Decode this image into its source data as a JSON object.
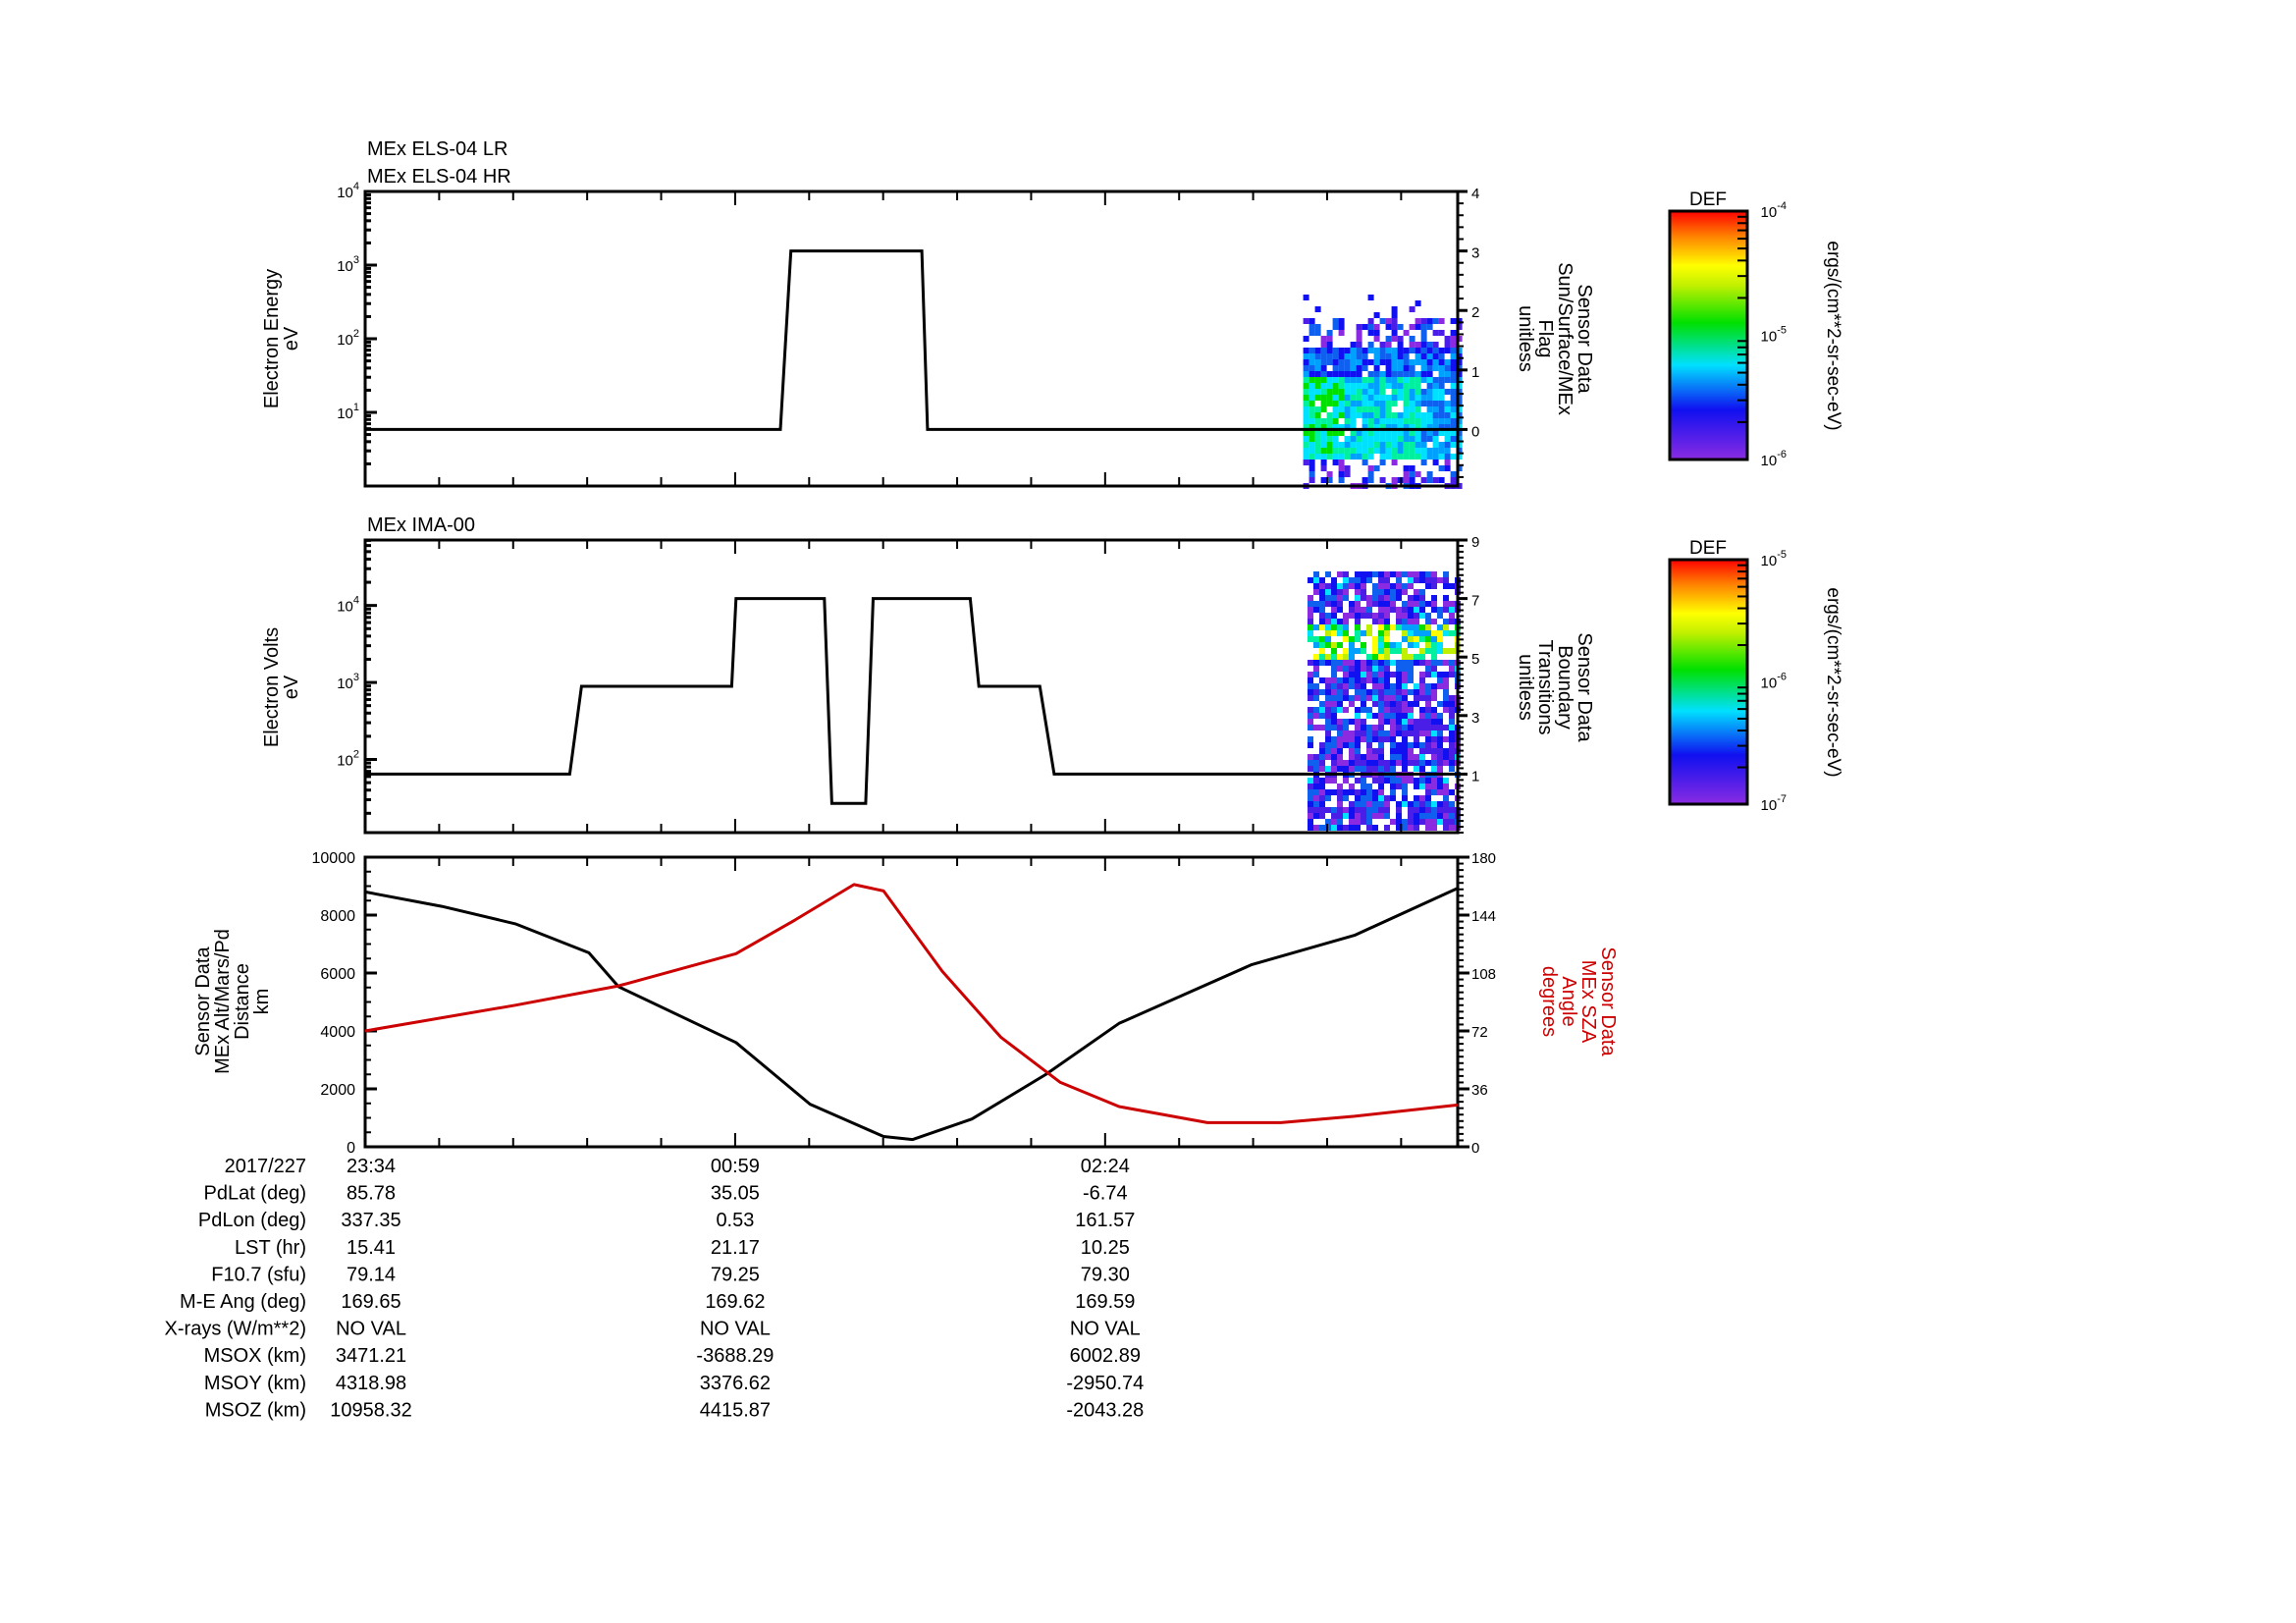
{
  "chart_data": [
    {
      "type": "line",
      "title_lines": [
        "MEx ELS-04 LR",
        "MEx ELS-04 HR"
      ],
      "ylabel": [
        "Electron Energy",
        "eV"
      ],
      "yscale": "log",
      "ylim_log_exponents": [
        0,
        4
      ],
      "yticks": [
        {
          "base": "10",
          "exp": "4",
          "v": 4
        },
        {
          "base": "10",
          "exp": "3",
          "v": 3
        },
        {
          "base": "10",
          "exp": "2",
          "v": 2
        },
        {
          "base": "10",
          "exp": "1",
          "v": 1
        }
      ],
      "y2label": [
        "Sensor Data",
        "Sun/Surface/MEx",
        "Flag",
        "unitless"
      ],
      "y2lim": [
        -0.95,
        4
      ],
      "y2ticks": [
        "0",
        "1",
        "2",
        "3",
        "4"
      ],
      "x_unit": "minutes since 23:34",
      "xlim": [
        0,
        251
      ],
      "series": [
        {
          "name": "Sun/Surface/MEx Flag",
          "x": [
            0,
            95.4,
            97.8,
            127.9,
            129.2,
            251
          ],
          "y": [
            0,
            0,
            3,
            3,
            0,
            0
          ]
        }
      ],
      "spectrogram": {
        "t_range": [
          215.5,
          251
        ],
        "colorbar": {
          "label": "DEF",
          "units": "ergs/(cm**2-sr-sec-eV)",
          "ticks": [
            {
              "base": "10",
              "exp": "-4"
            },
            {
              "base": "10",
              "exp": "-5"
            },
            {
              "base": "10",
              "exp": "-6"
            }
          ]
        }
      }
    },
    {
      "type": "line",
      "title_lines": [
        "MEx IMA-00"
      ],
      "ylabel": [
        "Electron Volts",
        "eV"
      ],
      "yscale": "log",
      "ylim_log_exponents": [
        1.05,
        4.85
      ],
      "yticks": [
        {
          "base": "10",
          "exp": "4",
          "v": 4
        },
        {
          "base": "10",
          "exp": "3",
          "v": 3
        },
        {
          "base": "10",
          "exp": "2",
          "v": 2
        }
      ],
      "y2label": [
        "Sensor Data",
        "Boundary",
        "Transitions",
        "unitless"
      ],
      "y2lim": [
        -1,
        9
      ],
      "y2ticks": [
        "1",
        "3",
        "5",
        "7",
        "9"
      ],
      "x_unit": "minutes since 23:34",
      "xlim": [
        0,
        251
      ],
      "series": [
        {
          "name": "Boundary Transitions",
          "x": [
            0,
            47,
            49.7,
            84.2,
            85.2,
            105.5,
            107.2,
            115,
            116.7,
            139,
            141,
            155,
            158.3,
            251
          ],
          "y": [
            1,
            1,
            4,
            4,
            7,
            7,
            0,
            0,
            7,
            7,
            4,
            4,
            1,
            1
          ]
        }
      ],
      "spectrogram": {
        "t_range": [
          216.5,
          251
        ],
        "colorbar": {
          "label": "DEF",
          "units": "ergs/(cm**2-sr-sec-eV)",
          "ticks": [
            {
              "base": "10",
              "exp": "-5"
            },
            {
              "base": "10",
              "exp": "-6"
            },
            {
              "base": "10",
              "exp": "-7"
            }
          ]
        }
      }
    },
    {
      "type": "line",
      "ylabel": [
        "Sensor Data",
        "MEx Alt/Mars/Pd",
        "Distance",
        "km"
      ],
      "ylim": [
        0,
        10000
      ],
      "yticks": [
        "0",
        "2000",
        "4000",
        "6000",
        "8000",
        "10000"
      ],
      "y2label": [
        "Sensor Data",
        "MEx SZA",
        "Angle",
        "degrees"
      ],
      "y2lim": [
        0,
        180
      ],
      "y2ticks": [
        "0",
        "36",
        "72",
        "108",
        "144",
        "180"
      ],
      "x_unit": "minutes since 23:34",
      "xlim": [
        0,
        251
      ],
      "series": [
        {
          "name": "MEx Alt/Mars/Pd Distance",
          "color": "#000000",
          "axis": "left",
          "x": [
            0,
            17.6,
            34.5,
            51.4,
            58.2,
            85.2,
            102.2,
            119.1,
            125.8,
            139.4,
            156.3,
            173.2,
            203.7,
            227.3,
            251
          ],
          "y": [
            8800,
            8300,
            7700,
            6700,
            5530,
            3600,
            1470,
            355,
            250,
            960,
            2490,
            4260,
            6290,
            7300,
            8930
          ]
        },
        {
          "name": "MEx SZA Angle",
          "color": "#cc0000",
          "axis": "right",
          "x": [
            0,
            34.5,
            58.2,
            85.2,
            98.8,
            112.3,
            119.1,
            132.6,
            146.1,
            159.7,
            173.2,
            193.5,
            210.4,
            227.3,
            251
          ],
          "y": [
            72,
            88,
            100,
            120,
            141,
            163,
            159,
            109,
            68,
            40,
            25,
            15,
            15,
            19,
            26
          ]
        }
      ]
    }
  ],
  "ephemeris": {
    "time_row": {
      "label": "2017/227",
      "values": [
        "23:34",
        "00:59",
        "02:24"
      ]
    },
    "rows": [
      {
        "label": "PdLat (deg)",
        "values": [
          "85.78",
          "35.05",
          "-6.74"
        ]
      },
      {
        "label": "PdLon (deg)",
        "values": [
          "337.35",
          "0.53",
          "161.57"
        ]
      },
      {
        "label": "LST (hr)",
        "values": [
          "15.41",
          "21.17",
          "10.25"
        ]
      },
      {
        "label": "F10.7 (sfu)",
        "values": [
          "79.14",
          "79.25",
          "79.30"
        ]
      },
      {
        "label": "M-E Ang (deg)",
        "values": [
          "169.65",
          "169.62",
          "169.59"
        ]
      },
      {
        "label": "X-rays (W/m**2)",
        "values": [
          "NO VAL",
          "NO VAL",
          "NO VAL"
        ]
      },
      {
        "label": "MSOX (km)",
        "values": [
          "3471.21",
          "-3688.29",
          "6002.89"
        ]
      },
      {
        "label": "MSOY (km)",
        "values": [
          "4318.98",
          "3376.62",
          "-2950.74"
        ]
      },
      {
        "label": "MSOZ (km)",
        "values": [
          "10958.32",
          "4415.87",
          "-2043.28"
        ]
      }
    ],
    "tick_minutes": [
      0,
      85,
      170
    ]
  },
  "colors": {
    "sza": "#cc0000",
    "line": "#000000"
  }
}
